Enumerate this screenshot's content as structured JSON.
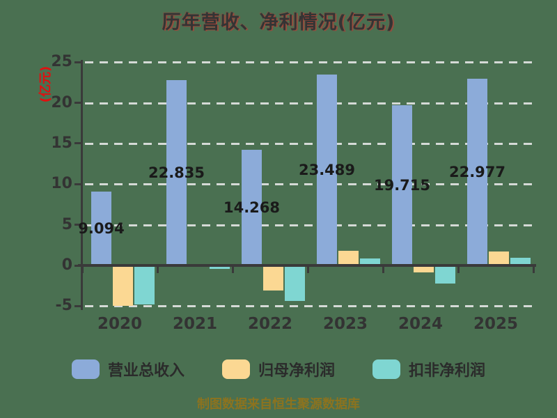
{
  "chart_data": {
    "type": "bar",
    "title": "历年营收、净利情况(亿元)",
    "ylabel": "(亿元)",
    "categories": [
      "2020",
      "2021",
      "2022",
      "2023",
      "2024",
      "2025"
    ],
    "series": [
      {
        "name": "营业总收入",
        "color": "#8cabd9",
        "values": [
          9.094,
          22.835,
          14.268,
          23.489,
          19.715,
          22.977
        ],
        "labels": [
          "9.094",
          "22.835",
          "14.268",
          "23.489",
          "19.715",
          "22.977"
        ]
      },
      {
        "name": "归母净利润",
        "color": "#fbd893",
        "values": [
          -4.95,
          0.12,
          -3.1,
          1.8,
          -0.85,
          1.75
        ]
      },
      {
        "name": "扣非净利润",
        "color": "#7fd6d2",
        "values": [
          -4.8,
          -0.45,
          -4.4,
          0.85,
          -2.2,
          0.95
        ]
      }
    ],
    "y_ticks": [
      25,
      20,
      15,
      10,
      5,
      0,
      -5
    ],
    "ylim": [
      -5,
      25
    ],
    "grid": "horizontal-dashed",
    "legend_position": "bottom"
  },
  "footer": {
    "text": "制图数据来自恒生聚源数据库"
  },
  "colors": {
    "background": "#4a7051",
    "axis": "#3a3a3a",
    "grid": "#e8e8e8",
    "title_text": "#343434",
    "title_shadow": "#d92b2b",
    "ylabel_red": "#e01010",
    "footer_gold": "#8c731f",
    "value_label": "#1a1a1a"
  }
}
